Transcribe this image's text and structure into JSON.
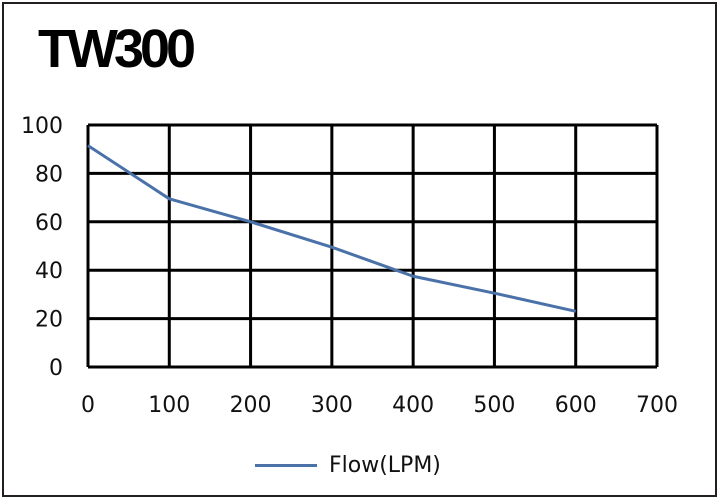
{
  "title": "TW300",
  "chart_data": {
    "type": "line",
    "title": "TW300",
    "xlabel": "",
    "ylabel": "",
    "xlim": [
      0,
      700
    ],
    "ylim": [
      0,
      100
    ],
    "x_ticks": [
      0,
      100,
      200,
      300,
      400,
      500,
      600,
      700
    ],
    "y_ticks": [
      0,
      20,
      40,
      60,
      80,
      100
    ],
    "grid": true,
    "legend_position": "bottom",
    "series": [
      {
        "name": "Flow(LPM)",
        "color": "#4a72a8",
        "x": [
          0,
          100,
          200,
          300,
          400,
          500,
          600
        ],
        "y": [
          91.5,
          69.5,
          60,
          49.5,
          37.5,
          30.5,
          23
        ]
      }
    ]
  }
}
